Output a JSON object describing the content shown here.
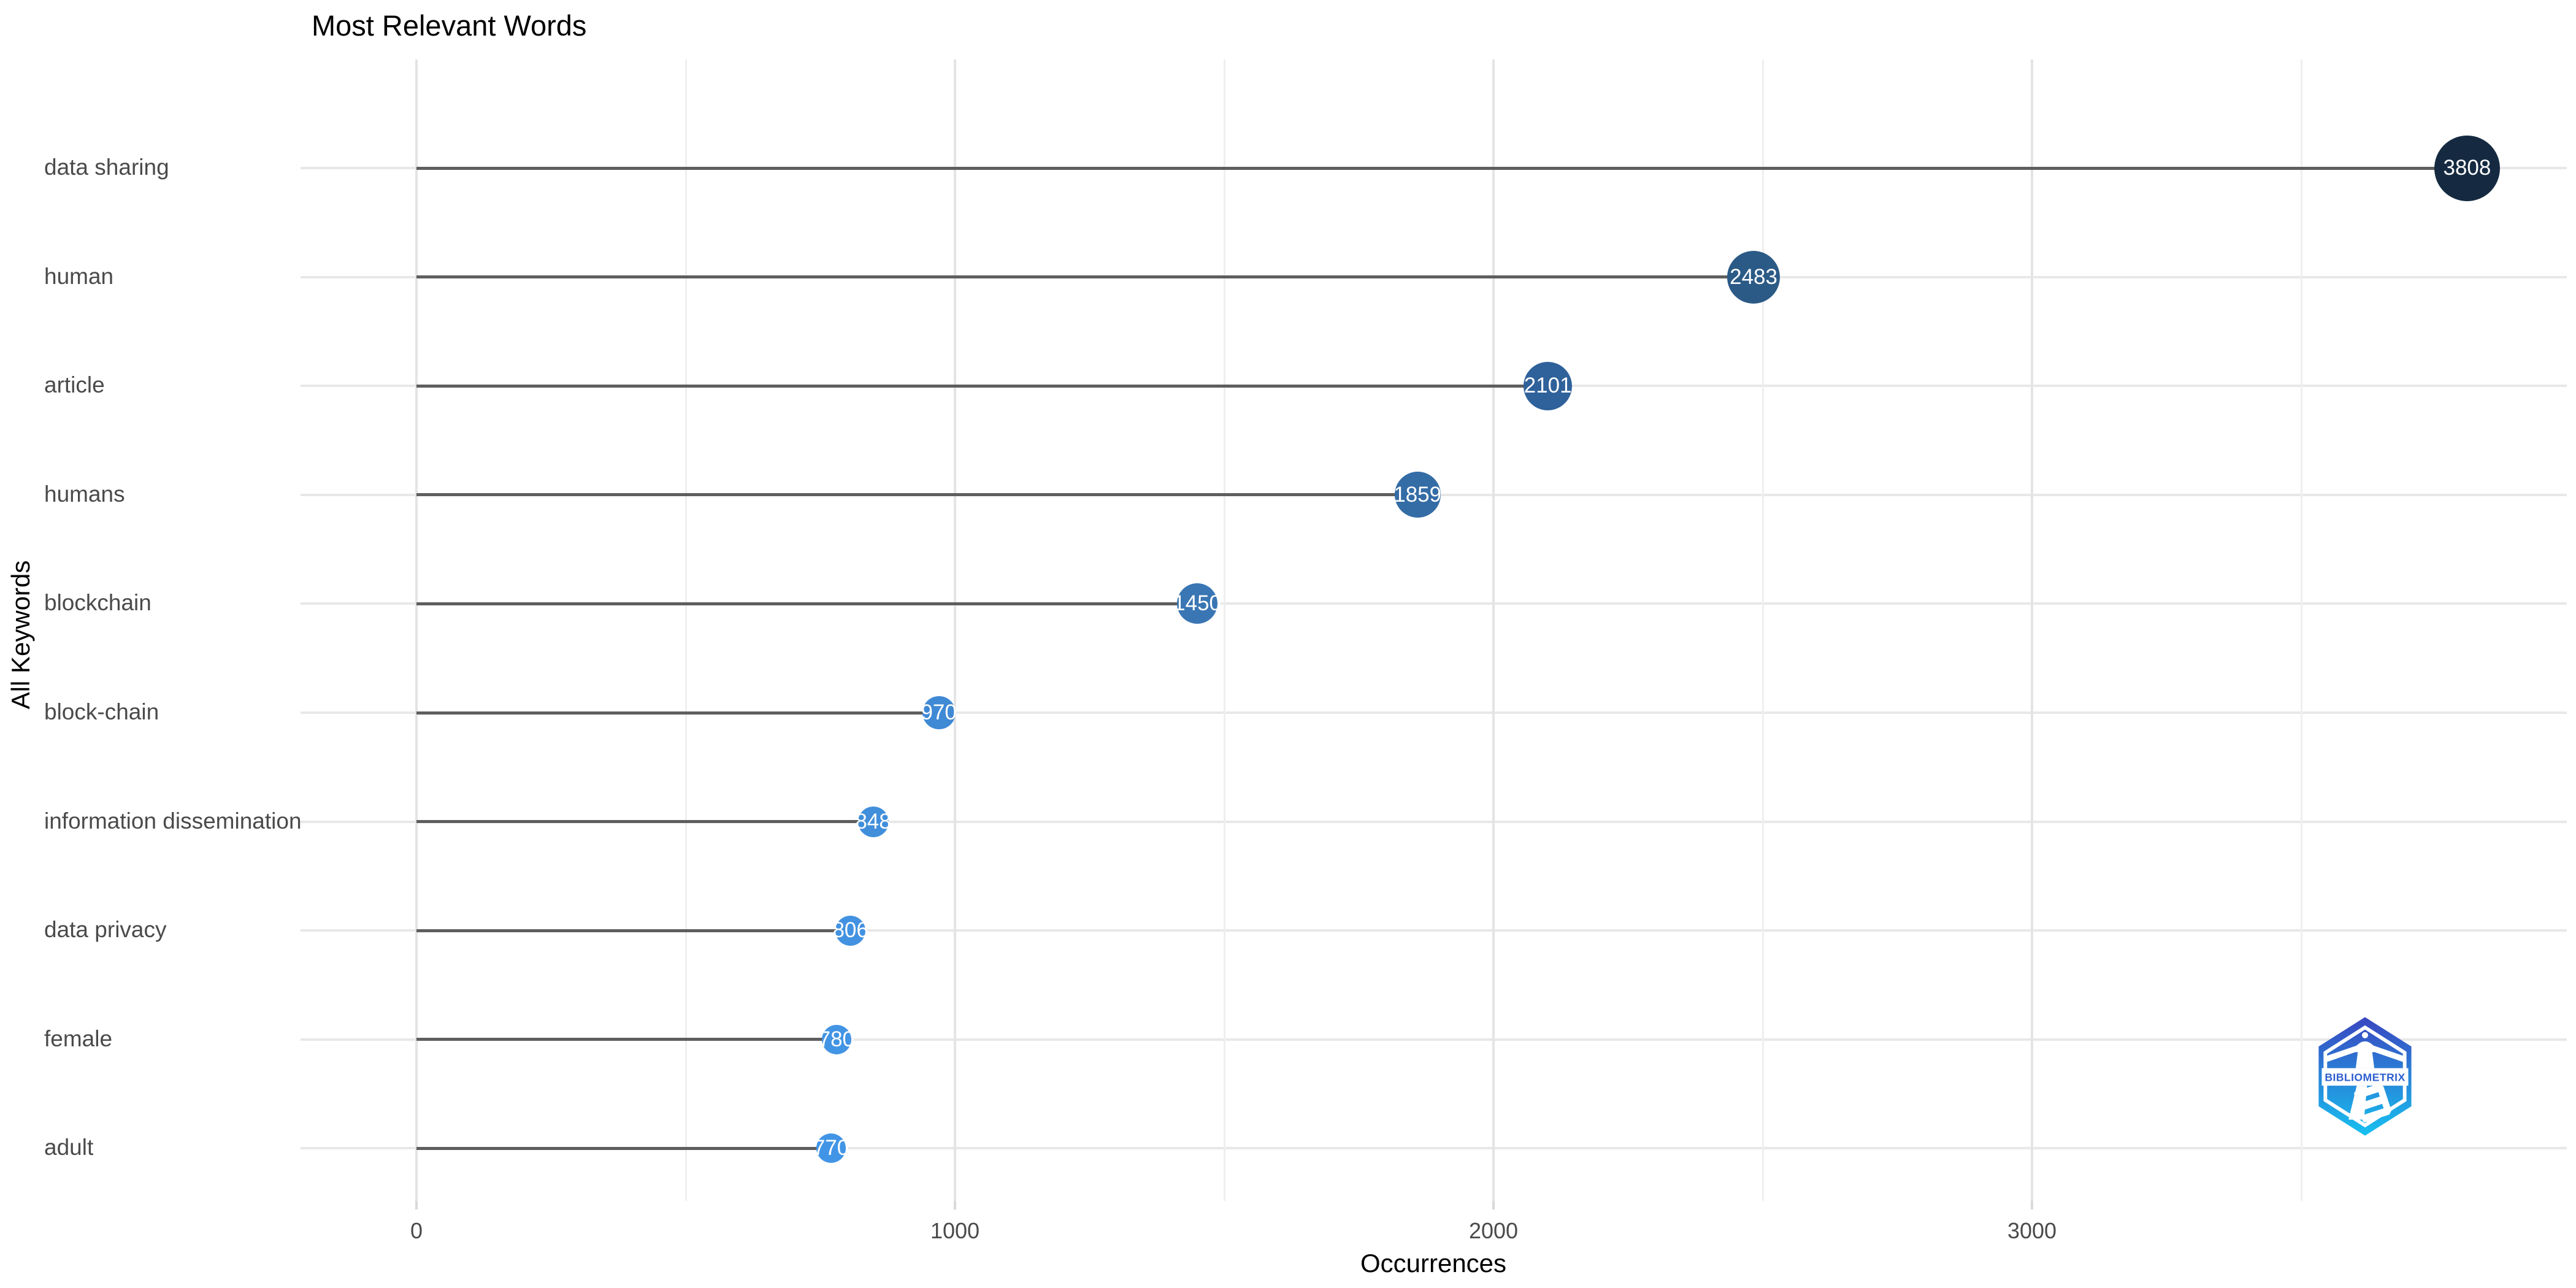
{
  "title": "Most Relevant Words",
  "axes": {
    "x_title": "Occurrences",
    "y_title": "All Keywords",
    "x_major_ticks": [
      0,
      1000,
      2000,
      3000
    ],
    "x_minor_ticks": [
      500,
      1500,
      2500,
      3500
    ]
  },
  "chart_data": {
    "type": "lollipop",
    "orientation": "horizontal",
    "title": "Most Relevant Words",
    "xlabel": "Occurrences",
    "ylabel": "All Keywords",
    "categories": [
      "data sharing",
      "human",
      "article",
      "humans",
      "blockchain",
      "block-chain",
      "information dissemination",
      "data privacy",
      "female",
      "adult"
    ],
    "values": [
      3808,
      2483,
      2101,
      1859,
      1450,
      970,
      848,
      806,
      780,
      770
    ],
    "point_colors": [
      "#152a40",
      "#2b5a86",
      "#2f619b",
      "#346ca6",
      "#3a76b4",
      "#4089d5",
      "#418fdb",
      "#4292e1",
      "#4294e4",
      "#4295e6"
    ],
    "value_label_color": "#ffffff",
    "stem_color": "#5e5e5e",
    "grid": "on",
    "xlim": [
      -215,
      3990
    ],
    "x_major_ticks": [
      0,
      1000,
      2000,
      3000
    ],
    "x_minor_ticks": [
      500,
      1500,
      2500,
      3500
    ],
    "legend": "none"
  },
  "logo": {
    "text": "BIBLIOMETRIX",
    "gradient_top": "#3a46c0",
    "gradient_bottom": "#17c1f0",
    "text_color": "#2e5fd0"
  }
}
